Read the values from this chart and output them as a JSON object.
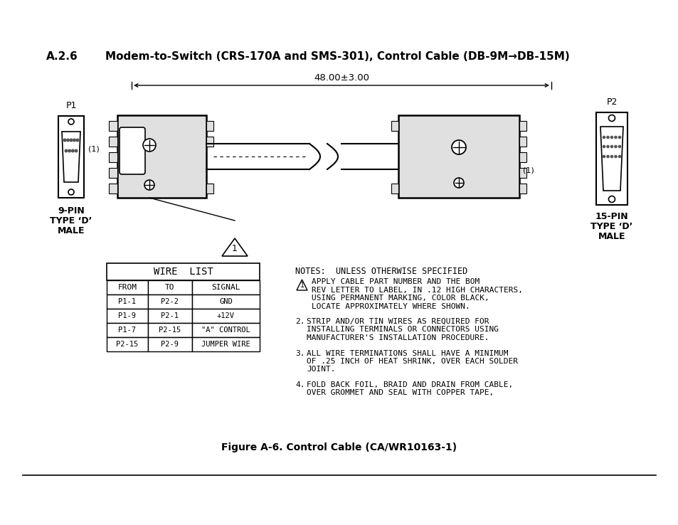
{
  "title_num": "A.2.6",
  "title_text": "Modem-to-Switch (CRS-170A and SMS-301), Control Cable (DB-9M→DB-15M)",
  "figure_caption": "Figure A-6. Control Cable (CA/WR10163-1)",
  "bg_color": "#ffffff",
  "text_color": "#000000",
  "wire_list_title": "WIRE  LIST",
  "wire_list_headers": [
    "FROM",
    "TO",
    "SIGNAL"
  ],
  "wire_list_rows": [
    [
      "P1-1",
      "P2-2",
      "GND"
    ],
    [
      "P1-9",
      "P2-1",
      "+12V"
    ],
    [
      "P1-7",
      "P2-15",
      "\"A\" CONTROL"
    ],
    [
      "P2-15",
      "P2-9",
      "JUMPER WIRE"
    ]
  ],
  "notes_title": "NOTES:  UNLESS OTHERWISE SPECIFIED",
  "note1_lines": [
    "APPLY CABLE PART NUMBER AND THE BOM",
    "REV LETTER TO LABEL, IN .12 HIGH CHARACTERS,",
    "USING PERMANENT MARKING, COLOR BLACK,",
    "LOCATE APPROXIMATELY WHERE SHOWN."
  ],
  "note2_lines": [
    "STRIP AND/OR TIN WIRES AS REQUIRED FOR",
    "INSTALLING TERMINALS OR CONNECTORS USING",
    "MANUFACTURER'S INSTALLATION PROCEDURE."
  ],
  "note3_lines": [
    "ALL WIRE TERMINATIONS SHALL HAVE A MINIMUM",
    "OF .25 INCH OF HEAT SHRINK, OVER EACH SOLDER",
    "JOINT."
  ],
  "note4_lines": [
    "FOLD BACK FOIL, BRAID AND DRAIN FROM CABLE,",
    "OVER GROMMET AND SEAL WITH COPPER TAPE,"
  ],
  "dimension_text": "48.00±3.00",
  "p1_label": "P1",
  "p2_label": "P2",
  "p1_type_lines": [
    "9-PIN",
    "TYPE ‘D’",
    "MALE"
  ],
  "p2_type_lines": [
    "15-PIN",
    "TYPE ‘D’",
    "MALE"
  ],
  "callout1_label": "(1)",
  "gray_connector": "#c8c8c8",
  "light_gray": "#e0e0e0"
}
